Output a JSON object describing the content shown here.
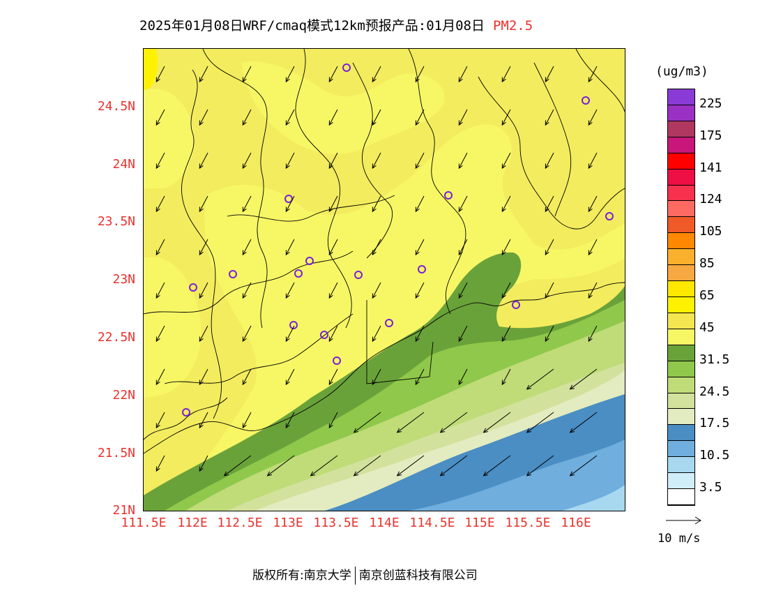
{
  "title": {
    "main": "2025年01月08日WRF/cmaq模式12km预报产品:01月08日",
    "pollutant": "PM2.5"
  },
  "map": {
    "lat_labels": [
      "24.5N",
      "24N",
      "23.5N",
      "23N",
      "22.5N",
      "22N",
      "21.5N",
      "21N"
    ],
    "lon_labels": [
      "111.5E",
      "112E",
      "112.5E",
      "113E",
      "113.5E",
      "114E",
      "114.5E",
      "115E",
      "115.5E",
      "116E"
    ],
    "colors": {
      "c45_65": "#f3ec5e",
      "c35_45": "#f7f766",
      "c31_35": "#6aa23a",
      "c28_31": "#8fc84a",
      "c24_28": "#bfdc78",
      "c21_24": "#d2e29c",
      "c17_21": "#e3ebc0",
      "c14_17": "#4a8ec4",
      "c10_14": "#6faedd",
      "c7_10": "#a8d8f0"
    },
    "station_marker": "purple-circle-icon",
    "wind_arrow": "arrow-icon"
  },
  "legend": {
    "unit": "(ug/m3)",
    "colors": [
      "#8a3ad6",
      "#9b30c4",
      "#b03860",
      "#c8167a",
      "#ff0000",
      "#ee0f45",
      "#f7304e",
      "#fd6a62",
      "#f05a28",
      "#ff8800",
      "#fbb02d",
      "#f7a840",
      "#ffe800",
      "#fff200",
      "#f4e651",
      "#f7f766",
      "#6aa23a",
      "#8fc84a",
      "#bfdc78",
      "#d2e29c",
      "#e3ebc0",
      "#4a8ec4",
      "#6faedd",
      "#a8d8f0",
      "#d0eef8",
      "#ffffff"
    ],
    "labels": [
      "225",
      "175",
      "141",
      "124",
      "105",
      "85",
      "65",
      "45",
      "31.5",
      "24.5",
      "17.5",
      "10.5",
      "3.5"
    ],
    "ref_vector": "10 m/s"
  },
  "copyright": {
    "left": "版权所有:南京大学",
    "right": "南京创蓝科技有限公司"
  }
}
